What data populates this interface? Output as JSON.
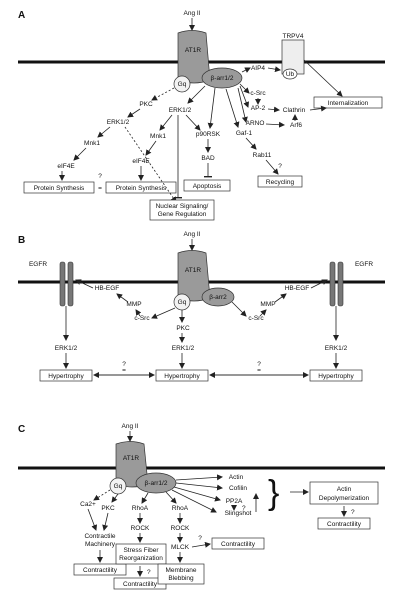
{
  "panelA": {
    "label": "A",
    "ligand": "Ang II",
    "receptor": "AT1R",
    "gq": "Gq",
    "barr": "β-arr1/2",
    "aip4": "AIP4",
    "trpv4": "TRPV4",
    "ub": "Ub",
    "csrc": "c-Src",
    "ap2": "AP-2",
    "clathrin": "Clathrin",
    "arno": "ARNO",
    "arf6": "Arf6",
    "internalization": "Internalization",
    "pkc": "PKC",
    "erk_left": "ERK1/2",
    "erk_mid": "ERK1/2",
    "mnk_left": "Mnk1",
    "mnk_mid": "Mnk1",
    "p90rsk": "p90RSK",
    "gaf1": "Gaf-1",
    "eif4e_left": "eIF4E",
    "eif4e_mid": "eIF4E",
    "bad": "BAD",
    "rab11": "Rab11",
    "q_ps": "?",
    "eq_ps": "=",
    "q_rab": "?",
    "protein_synthesis_left": "Protein Synthesis",
    "protein_synthesis_mid": "Protein Synthesis",
    "apoptosis": "Apoptosis",
    "recycling": "Recycling",
    "nuclear_line1": "Nuclear Signaling/",
    "nuclear_line2": "Gene Regulation"
  },
  "panelB": {
    "label": "B",
    "ligand": "Ang II",
    "receptor": "AT1R",
    "gq": "Gq",
    "barr": "β-arr2",
    "egfr_left": "EGFR",
    "egfr_right": "EGFR",
    "hbegf_left": "HB-EGF",
    "hbegf_right": "HB-EGF",
    "mmp_left": "MMP",
    "mmp_right": "MMP",
    "csrc_left": "c-Src",
    "csrc_right": "c-Src",
    "pkc": "PKC",
    "erk_left": "ERK1/2",
    "erk_mid": "ERK1/2",
    "erk_right": "ERK1/2",
    "q_left": "?",
    "eq_left": "=",
    "q_right": "?",
    "eq_right": "=",
    "hyp_left": "Hypertrophy",
    "hyp_mid": "Hypertrophy",
    "hyp_right": "Hypertrophy"
  },
  "panelC": {
    "label": "C",
    "ligand": "Ang II",
    "receptor": "AT1R",
    "gq": "Gq",
    "barr": "β-arr1/2",
    "ca": "Ca2+",
    "pkc": "PKC",
    "rhoa_mid": "RhoA",
    "rhoa_right": "RhoA",
    "rock_mid": "ROCK",
    "rock_right": "ROCK",
    "mlck": "MLCK",
    "actin": "Actin",
    "cofilin": "Cofilin",
    "pp2a": "PP2A",
    "slingshot": "Slingshot",
    "q_pp2a": "?",
    "q_mlck": "?",
    "q_sf": "?",
    "q_depol": "?",
    "contractile_line1": "Contractile",
    "contractile_line2": "Machinery",
    "contractility_left": "Contractility",
    "contractility_mid": "Contractility",
    "contractility_mlck": "Contractility",
    "contractility_right": "Contractility",
    "sf_line1": "Stress Fiber",
    "sf_line2": "Reorganization",
    "mb_line1": "Membrane",
    "mb_line2": "Blebbing",
    "depol_line1": "Actin",
    "depol_line2": "Depolymerization"
  }
}
